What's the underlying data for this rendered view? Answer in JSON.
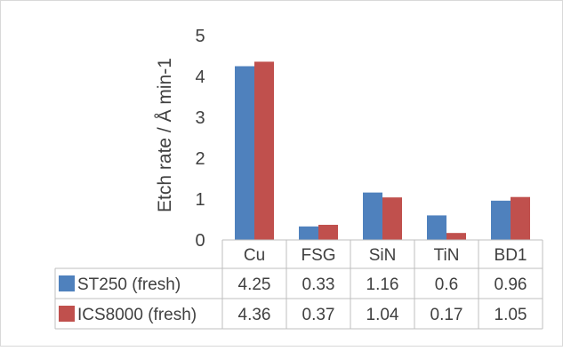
{
  "chart_data": {
    "type": "bar",
    "title": "",
    "xlabel": "",
    "ylabel": "Etch rate / Å min-1",
    "ylim": [
      0,
      5
    ],
    "yticks": [
      0,
      1,
      2,
      3,
      4,
      5
    ],
    "grid": false,
    "legend": "data-table-left",
    "categories": [
      "Cu",
      "FSG",
      "SiN",
      "TiN",
      "BD1"
    ],
    "series": [
      {
        "name": "ST250 (fresh)",
        "color": "#4F81BD",
        "values": [
          4.25,
          0.33,
          1.16,
          0.6,
          0.96
        ]
      },
      {
        "name": "ICS8000 (fresh)",
        "color": "#C0504D",
        "values": [
          4.36,
          0.37,
          1.04,
          0.17,
          1.05
        ]
      }
    ],
    "table_values": [
      [
        "4.25",
        "0.33",
        "1.16",
        "0.6",
        "0.96"
      ],
      [
        "4.36",
        "0.37",
        "1.04",
        "0.17",
        "1.05"
      ]
    ]
  }
}
